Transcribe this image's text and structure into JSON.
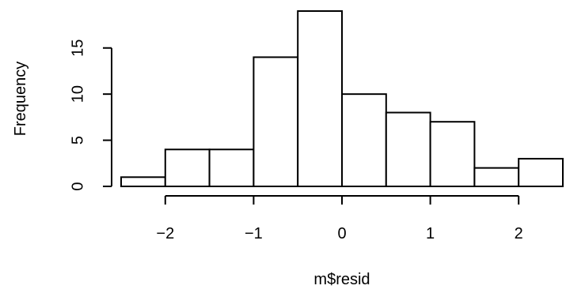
{
  "chart_data": {
    "type": "bar",
    "title": "",
    "xlabel": "m$resid",
    "ylabel": "Frequency",
    "bins": [
      {
        "x0": -2.5,
        "x1": -2.0,
        "count": 1
      },
      {
        "x0": -2.0,
        "x1": -1.5,
        "count": 4
      },
      {
        "x0": -1.5,
        "x1": -1.0,
        "count": 4
      },
      {
        "x0": -1.0,
        "x1": -0.5,
        "count": 14
      },
      {
        "x0": -0.5,
        "x1": 0.0,
        "count": 19
      },
      {
        "x0": 0.0,
        "x1": 0.5,
        "count": 10
      },
      {
        "x0": 0.5,
        "x1": 1.0,
        "count": 8
      },
      {
        "x0": 1.0,
        "x1": 1.5,
        "count": 7
      },
      {
        "x0": 1.5,
        "x1": 2.0,
        "count": 2
      },
      {
        "x0": 2.0,
        "x1": 2.5,
        "count": 3
      }
    ],
    "x_ticks": [
      -2,
      -1,
      0,
      1,
      2
    ],
    "x_tick_labels": [
      "−2",
      "−1",
      "0",
      "1",
      "2"
    ],
    "y_ticks": [
      0,
      5,
      10,
      15
    ],
    "y_tick_labels": [
      "0",
      "5",
      "10",
      "15"
    ],
    "xlim": [
      -2.5,
      2.5
    ],
    "ylim": [
      0,
      19
    ],
    "grid": false,
    "legend": "none"
  }
}
